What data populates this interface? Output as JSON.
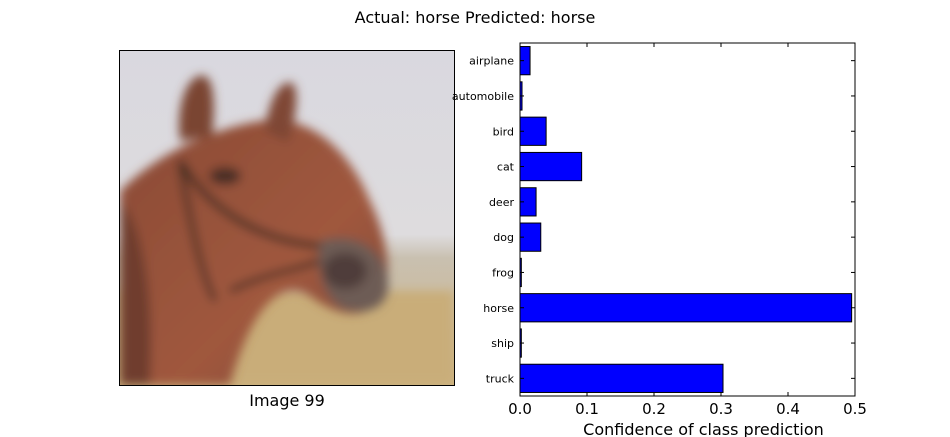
{
  "figure_title": "Actual: horse Predicted: horse",
  "image_caption": "Image 99",
  "chart_data": {
    "type": "bar",
    "orientation": "horizontal",
    "categories": [
      "airplane",
      "automobile",
      "bird",
      "cat",
      "deer",
      "dog",
      "frog",
      "horse",
      "ship",
      "truck"
    ],
    "values": [
      0.015,
      0.003,
      0.039,
      0.092,
      0.024,
      0.031,
      0.002,
      0.495,
      0.002,
      0.303
    ],
    "xlabel": "Confidence of class prediction",
    "ylabel": "",
    "xlim": [
      0.0,
      0.5
    ],
    "xticks": [
      "0.0",
      "0.1",
      "0.2",
      "0.3",
      "0.4",
      "0.5"
    ],
    "bar_color": "#0000ff",
    "grid": false
  }
}
